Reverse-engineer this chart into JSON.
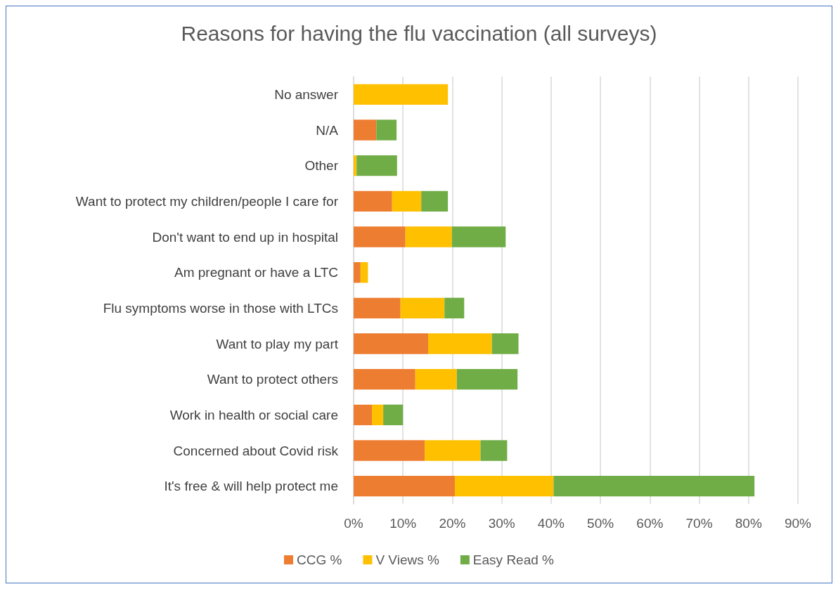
{
  "chart_data": {
    "type": "bar",
    "orientation": "horizontal",
    "stacked": true,
    "title": "Reasons for having the flu vaccination (all surveys)",
    "categories": [
      "No answer",
      "N/A",
      "Other",
      "Want to protect my children/people I care for",
      "Don't want to end up in hospital",
      "Am pregnant or have a LTC",
      "Flu symptoms worse in those with LTCs",
      "Want to play my part",
      "Want to protect others",
      "Work in health or social care",
      "Concerned about Covid risk",
      "It's free & will help protect me"
    ],
    "series": [
      {
        "name": "CCG %",
        "color": "#ed7d31",
        "values": [
          0,
          4.6,
          0,
          7.8,
          10.5,
          1.4,
          9.5,
          15.1,
          12.5,
          3.7,
          14.4,
          20.5
        ]
      },
      {
        "name": "V Views %",
        "color": "#ffc000",
        "values": [
          19.1,
          0,
          0.6,
          5.9,
          9.4,
          1.5,
          8.9,
          12.9,
          8.4,
          2.3,
          11.3,
          20.0
        ]
      },
      {
        "name": "Easy Read %",
        "color": "#70ad47",
        "values": [
          0,
          4.1,
          8.2,
          5.4,
          10.9,
          0,
          4.0,
          5.4,
          12.3,
          4.0,
          5.4,
          40.7
        ]
      }
    ],
    "xlim": [
      0,
      90
    ],
    "xticks": [
      {
        "value": 0,
        "label": "0%"
      },
      {
        "value": 10,
        "label": "10%"
      },
      {
        "value": 20,
        "label": "20%"
      },
      {
        "value": 30,
        "label": "30%"
      },
      {
        "value": 40,
        "label": "40%"
      },
      {
        "value": 50,
        "label": "50%"
      },
      {
        "value": 60,
        "label": "60%"
      },
      {
        "value": 70,
        "label": "70%"
      },
      {
        "value": 80,
        "label": "80%"
      },
      {
        "value": 90,
        "label": "90%"
      }
    ],
    "grid": "x",
    "legend": "bottom"
  }
}
